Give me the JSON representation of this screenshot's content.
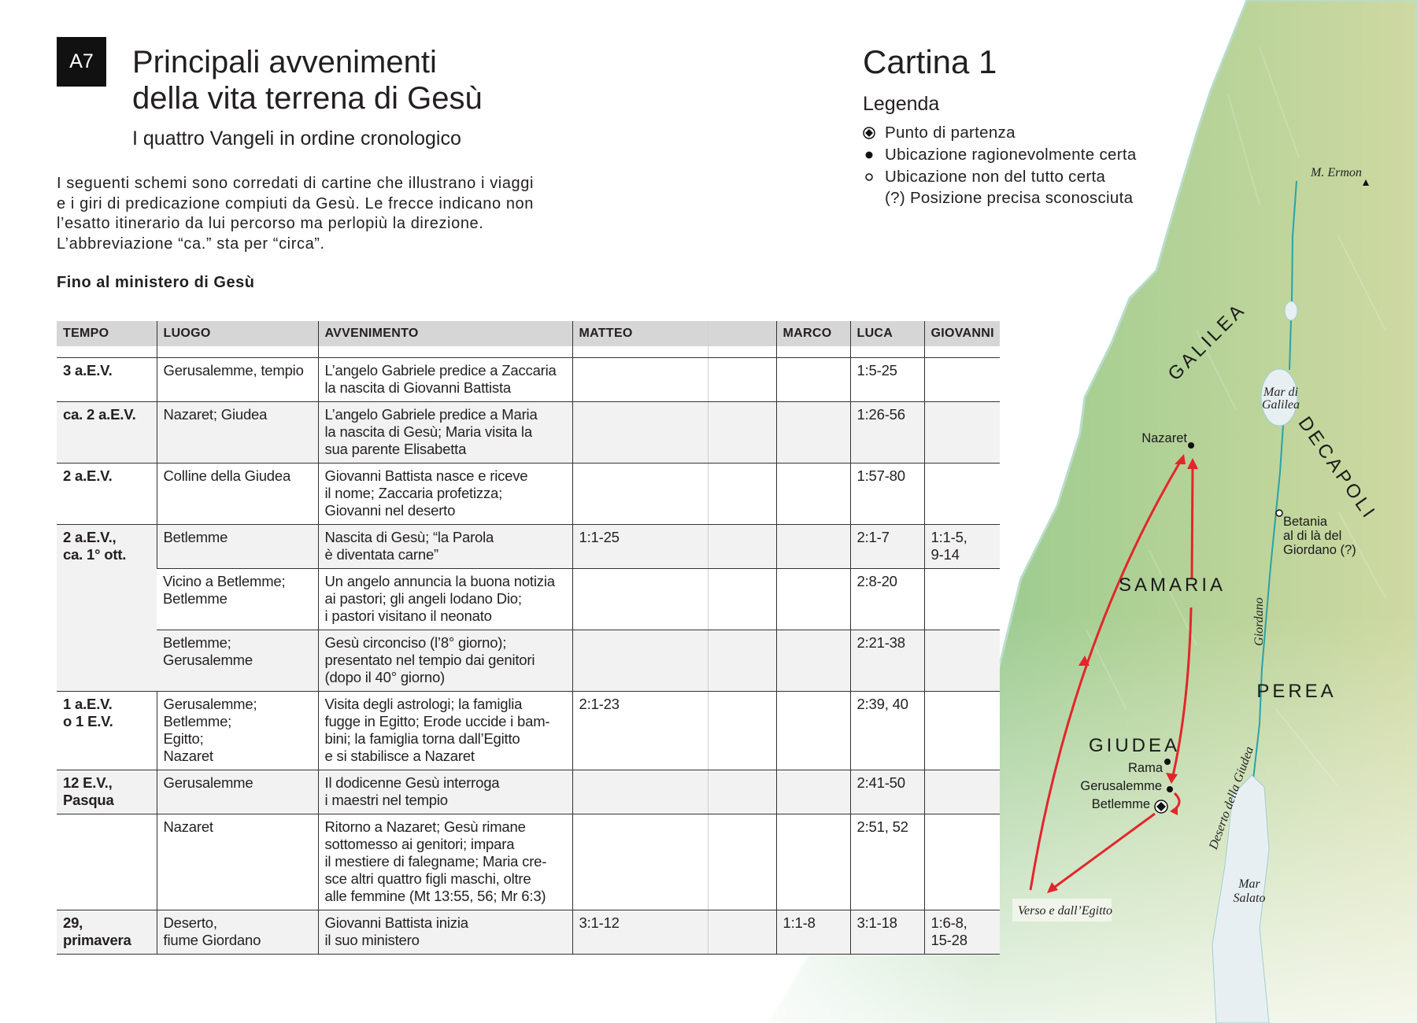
{
  "header": {
    "badge": "A7",
    "title_line1": "Principali avvenimenti",
    "title_line2": "della vita terrena di Gesù",
    "subtitle": "I quattro Vangeli in ordine cronologico",
    "intro": "I seguenti schemi sono corredati di cartine che illustrano i viaggi\ne i giri di predicazione compiuti da Gesù. Le frecce indicano non\nl’esatto itinerario da lui percorso ma perlopiù la direzione.\nL’abbreviazione “ca.” sta per “circa”.",
    "section": "Fino al ministero di Gesù"
  },
  "map": {
    "title": "Cartina 1",
    "legend_title": "Legenda",
    "legend": [
      {
        "icon": "starting-point-icon",
        "label": "Punto di partenza"
      },
      {
        "icon": "filled-dot-icon",
        "label": "Ubicazione ragionevolmente certa"
      },
      {
        "icon": "hollow-dot-icon",
        "label": "Ubicazione non del tutto certa"
      },
      {
        "icon": "",
        "label": "(?) Posizione precisa sconosciuta"
      }
    ],
    "labels": {
      "ermon": "M. Ermon",
      "galilea": "GALILEA",
      "mar_galilea_1": "Mar di",
      "mar_galilea_2": "Galilea",
      "decapoli": "DECAPOLI",
      "nazaret": "Nazaret",
      "betania_1": "Betania",
      "betania_2": "al di là del",
      "betania_3": "Giordano (?)",
      "samaria": "SAMARIA",
      "giordano": "Giordano",
      "perea": "PEREA",
      "giudea": "GIUDEA",
      "rama": "Rama",
      "gerusalemme": "Gerusalemme",
      "betlemme": "Betlemme",
      "deserto": "Deserto della Giudea",
      "mar_salato_1": "Mar",
      "mar_salato_2": "Salato",
      "egitto": "Verso e dall’Egitto"
    },
    "colors": {
      "route": "#e3262b",
      "river": "#2aa3a6",
      "land": "#8cc58f",
      "water": "#e8eff3"
    }
  },
  "table": {
    "columns": [
      "TEMPO",
      "LUOGO",
      "AVVENIMENTO",
      "MATTEO",
      "",
      "MARCO",
      "LUCA",
      "GIOVANNI"
    ],
    "groups": [
      {
        "tempo": "3 a.E.V.",
        "rows": [
          {
            "luogo": "Gerusalemme, tempio",
            "avvenimento": "L’angelo Gabriele predice a Zaccaria\nla nascita di Giovanni Battista",
            "matteo": "",
            "marco": "",
            "luca": "1:5-25",
            "giovanni": ""
          }
        ]
      },
      {
        "tempo": "ca. 2 a.E.V.",
        "rows": [
          {
            "luogo": "Nazaret; Giudea",
            "avvenimento": "L’angelo Gabriele predice a Maria\nla nascita di Gesù; Maria visita la\nsua parente Elisabetta",
            "matteo": "",
            "marco": "",
            "luca": "1:26-56",
            "giovanni": ""
          }
        ]
      },
      {
        "tempo": "2 a.E.V.",
        "rows": [
          {
            "luogo": "Colline della Giudea",
            "avvenimento": "Giovanni Battista nasce e riceve\nil nome; Zaccaria profetizza;\nGiovanni nel deserto",
            "matteo": "",
            "marco": "",
            "luca": "1:57-80",
            "giovanni": ""
          }
        ]
      },
      {
        "tempo": "2 a.E.V.,\nca. 1° ott.",
        "rows": [
          {
            "luogo": "Betlemme",
            "avvenimento": "Nascita di Gesù; “la Parola\nè diventata carne”",
            "matteo": "1:1-25",
            "marco": "",
            "luca": "2:1-7",
            "giovanni": "1:1-5,\n9-14"
          },
          {
            "luogo": "Vicino a Betlemme;\nBetlemme",
            "avvenimento": "Un angelo annuncia la buona notizia\nai pastori; gli angeli lodano Dio;\ni pastori visitano il neonato",
            "matteo": "",
            "marco": "",
            "luca": "2:8-20",
            "giovanni": ""
          },
          {
            "luogo": "Betlemme;\nGerusalemme",
            "avvenimento": "Gesù circonciso (l’8° giorno);\npresentato nel tempio dai genitori\n(dopo il 40° giorno)",
            "matteo": "",
            "marco": "",
            "luca": "2:21-38",
            "giovanni": ""
          }
        ]
      },
      {
        "tempo": "1 a.E.V.\no 1 E.V.",
        "rows": [
          {
            "luogo": "Gerusalemme;\nBetlemme;\nEgitto;\nNazaret",
            "avvenimento": "Visita degli astrologi; la famiglia\nfugge in Egitto; Erode uccide i bam-\nbini; la famiglia torna dall’Egitto\ne si stabilisce a Nazaret",
            "matteo": "2:1-23",
            "marco": "",
            "luca": "2:39, 40",
            "giovanni": ""
          }
        ]
      },
      {
        "tempo": "12 E.V.,\nPasqua",
        "rows": [
          {
            "luogo": "Gerusalemme",
            "avvenimento": "Il dodicenne Gesù interroga\ni maestri nel tempio",
            "matteo": "",
            "marco": "",
            "luca": "2:41-50",
            "giovanni": ""
          }
        ]
      },
      {
        "tempo": "",
        "rows": [
          {
            "luogo": "Nazaret",
            "avvenimento": "Ritorno a Nazaret; Gesù rimane\nsottomesso ai genitori; impara\nil mestiere di falegname; Maria cre-\nsce altri quattro figli maschi, oltre\nalle femmine (Mt 13:55, 56; Mr 6:3)",
            "matteo": "",
            "marco": "",
            "luca": "2:51, 52",
            "giovanni": ""
          }
        ]
      },
      {
        "tempo": "29,\nprimavera",
        "rows": [
          {
            "luogo": "Deserto,\nfiume Giordano",
            "avvenimento": "Giovanni Battista inizia\nil suo ministero",
            "matteo": "3:1-12",
            "marco": "1:1-8",
            "luca": "3:1-18",
            "giovanni": "1:6-8,\n15-28"
          }
        ]
      }
    ]
  }
}
